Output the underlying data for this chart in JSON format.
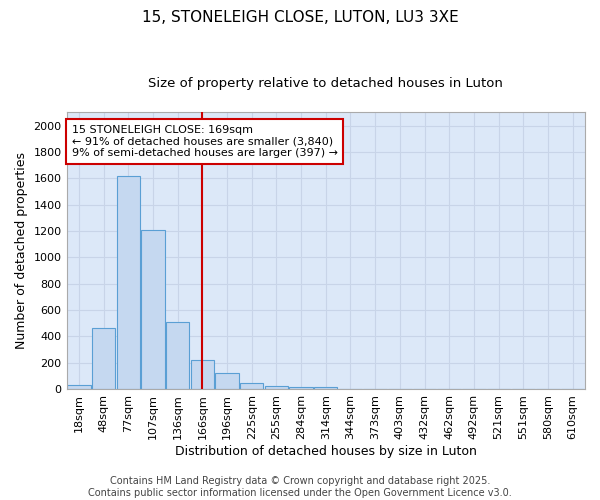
{
  "title1": "15, STONELEIGH CLOSE, LUTON, LU3 3XE",
  "title2": "Size of property relative to detached houses in Luton",
  "xlabel": "Distribution of detached houses by size in Luton",
  "ylabel": "Number of detached properties",
  "categories": [
    "18sqm",
    "48sqm",
    "77sqm",
    "107sqm",
    "136sqm",
    "166sqm",
    "196sqm",
    "225sqm",
    "255sqm",
    "284sqm",
    "314sqm",
    "344sqm",
    "373sqm",
    "403sqm",
    "432sqm",
    "462sqm",
    "492sqm",
    "521sqm",
    "551sqm",
    "580sqm",
    "610sqm"
  ],
  "values": [
    30,
    460,
    1620,
    1210,
    510,
    220,
    125,
    45,
    25,
    18,
    12,
    0,
    0,
    0,
    0,
    0,
    0,
    0,
    0,
    0,
    0
  ],
  "bar_color": "#c5d8f0",
  "bar_edge_color": "#5a9fd4",
  "vline_index": 5,
  "vline_color": "#cc0000",
  "annotation_line1": "15 STONELEIGH CLOSE: 169sqm",
  "annotation_line2": "← 91% of detached houses are smaller (3,840)",
  "annotation_line3": "9% of semi-detached houses are larger (397) →",
  "annotation_box_facecolor": "#ffffff",
  "annotation_box_edgecolor": "#cc0000",
  "ylim": [
    0,
    2100
  ],
  "yticks": [
    0,
    200,
    400,
    600,
    800,
    1000,
    1200,
    1400,
    1600,
    1800,
    2000
  ],
  "grid_color": "#c8d4e8",
  "plot_bg_color": "#dce8f8",
  "fig_bg_color": "#ffffff",
  "footer_text": "Contains HM Land Registry data © Crown copyright and database right 2025.\nContains public sector information licensed under the Open Government Licence v3.0.",
  "title1_fontsize": 11,
  "title2_fontsize": 9.5,
  "axis_label_fontsize": 9,
  "tick_fontsize": 8,
  "annotation_fontsize": 8,
  "footer_fontsize": 7
}
